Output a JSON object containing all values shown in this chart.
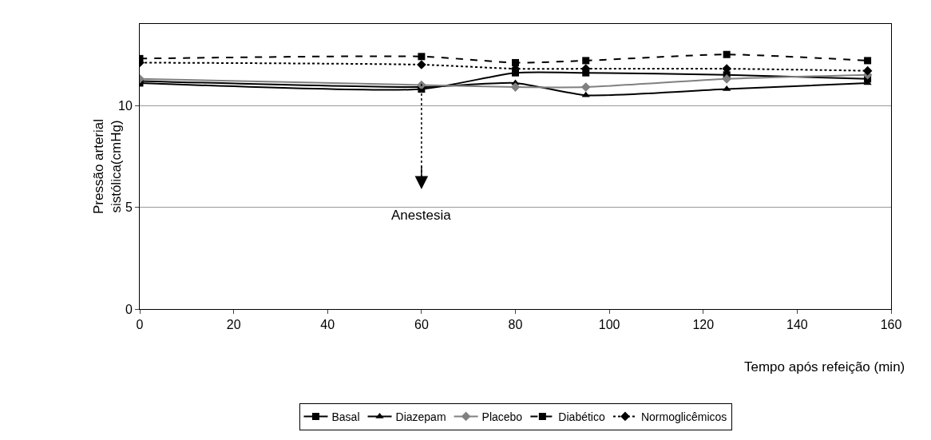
{
  "chart_data": {
    "type": "line",
    "xlabel": "Tempo após refeição (min)",
    "ylabel": "Pressão arterial\nsistólica(cmHg)",
    "x": [
      0,
      60,
      80,
      95,
      125,
      155
    ],
    "series": [
      {
        "name": "Basal",
        "color": "#000000",
        "marker": "square",
        "line_style": "solid",
        "values": [
          11.1,
          10.8,
          11.6,
          11.6,
          11.5,
          11.3
        ]
      },
      {
        "name": "Diazepam",
        "color": "#000000",
        "marker": "triangle",
        "line_style": "solid",
        "values": [
          11.2,
          10.9,
          11.1,
          10.5,
          10.8,
          11.1
        ]
      },
      {
        "name": "Placebo",
        "color": "#808080",
        "marker": "diamond",
        "line_style": "solid",
        "values": [
          11.3,
          11.0,
          10.9,
          10.9,
          11.3,
          11.5
        ]
      },
      {
        "name": "Diabético",
        "color": "#000000",
        "marker": "square",
        "line_style": "dashed",
        "values": [
          12.3,
          12.4,
          12.1,
          12.2,
          12.5,
          12.2
        ]
      },
      {
        "name": "Normoglicêmicos",
        "color": "#000000",
        "marker": "diamond",
        "line_style": "dotted",
        "values": [
          12.1,
          12.0,
          11.8,
          11.8,
          11.8,
          11.7
        ]
      }
    ],
    "ref_lines": [
      {
        "axis": "x",
        "value": 60,
        "label": "Anestesia",
        "line_style": "dotted",
        "color": "#000000"
      }
    ],
    "xlim": [
      0,
      160
    ],
    "xticks": [
      0,
      20,
      40,
      60,
      80,
      100,
      120,
      140,
      160
    ],
    "ylim": [
      0,
      14
    ],
    "yticks": [
      0,
      5,
      10
    ],
    "grid": "y",
    "legend": "bottom"
  }
}
